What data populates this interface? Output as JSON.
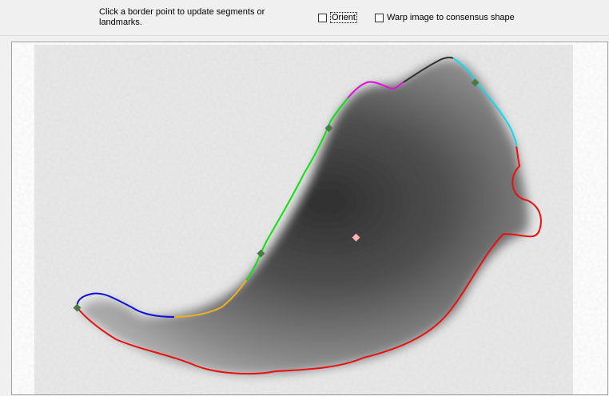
{
  "toolbar": {
    "instructions": "Click a border point to update segments or landmarks.",
    "orient_label": "Orient",
    "orient_checked": false,
    "warp_label": "Warp image to consensus shape",
    "warp_checked": false
  },
  "colors": {
    "segment_red": "#e81010",
    "segment_blue": "#1010e0",
    "segment_orange": "#f0b020",
    "segment_green": "#10e010",
    "segment_magenta": "#e010e0",
    "segment_black": "#303030",
    "segment_cyan": "#10d8f0",
    "landmark": "#4a7a4a",
    "centroid": "#ffb0b0"
  },
  "icons": {
    "landmark": "grey-green-diamond",
    "centroid": "pink-diamond"
  }
}
